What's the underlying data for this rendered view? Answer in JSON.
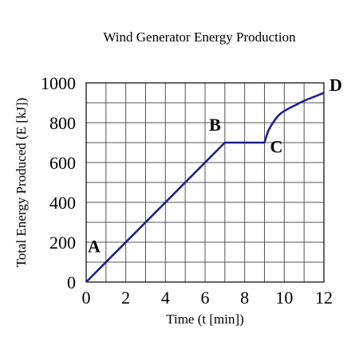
{
  "chart_data": {
    "type": "line",
    "title": "Wind Generator Energy Production",
    "xlabel": "Time (t [min])",
    "ylabel": "Total Energy Produced (E [kJ])",
    "xlim": [
      0,
      12
    ],
    "ylim": [
      0,
      1000
    ],
    "x_ticks": [
      0,
      2,
      4,
      6,
      8,
      10,
      12
    ],
    "y_ticks": [
      0,
      200,
      400,
      600,
      800,
      1000
    ],
    "grid": true,
    "color": "#1f1f8f",
    "series": [
      {
        "x": [
          0,
          7,
          9,
          9.2,
          9.5,
          9.8,
          10.2,
          10.6,
          11.0,
          11.5,
          12
        ],
        "y": [
          0,
          700,
          700,
          760,
          810,
          845,
          870,
          890,
          910,
          930,
          950
        ]
      }
    ],
    "annotations": [
      {
        "text": "A",
        "x": 0.4,
        "y": 150
      },
      {
        "text": "B",
        "x": 6.5,
        "y": 760
      },
      {
        "text": "C",
        "x": 9.6,
        "y": 650
      },
      {
        "text": "D",
        "x": 12.6,
        "y": 960
      }
    ]
  }
}
